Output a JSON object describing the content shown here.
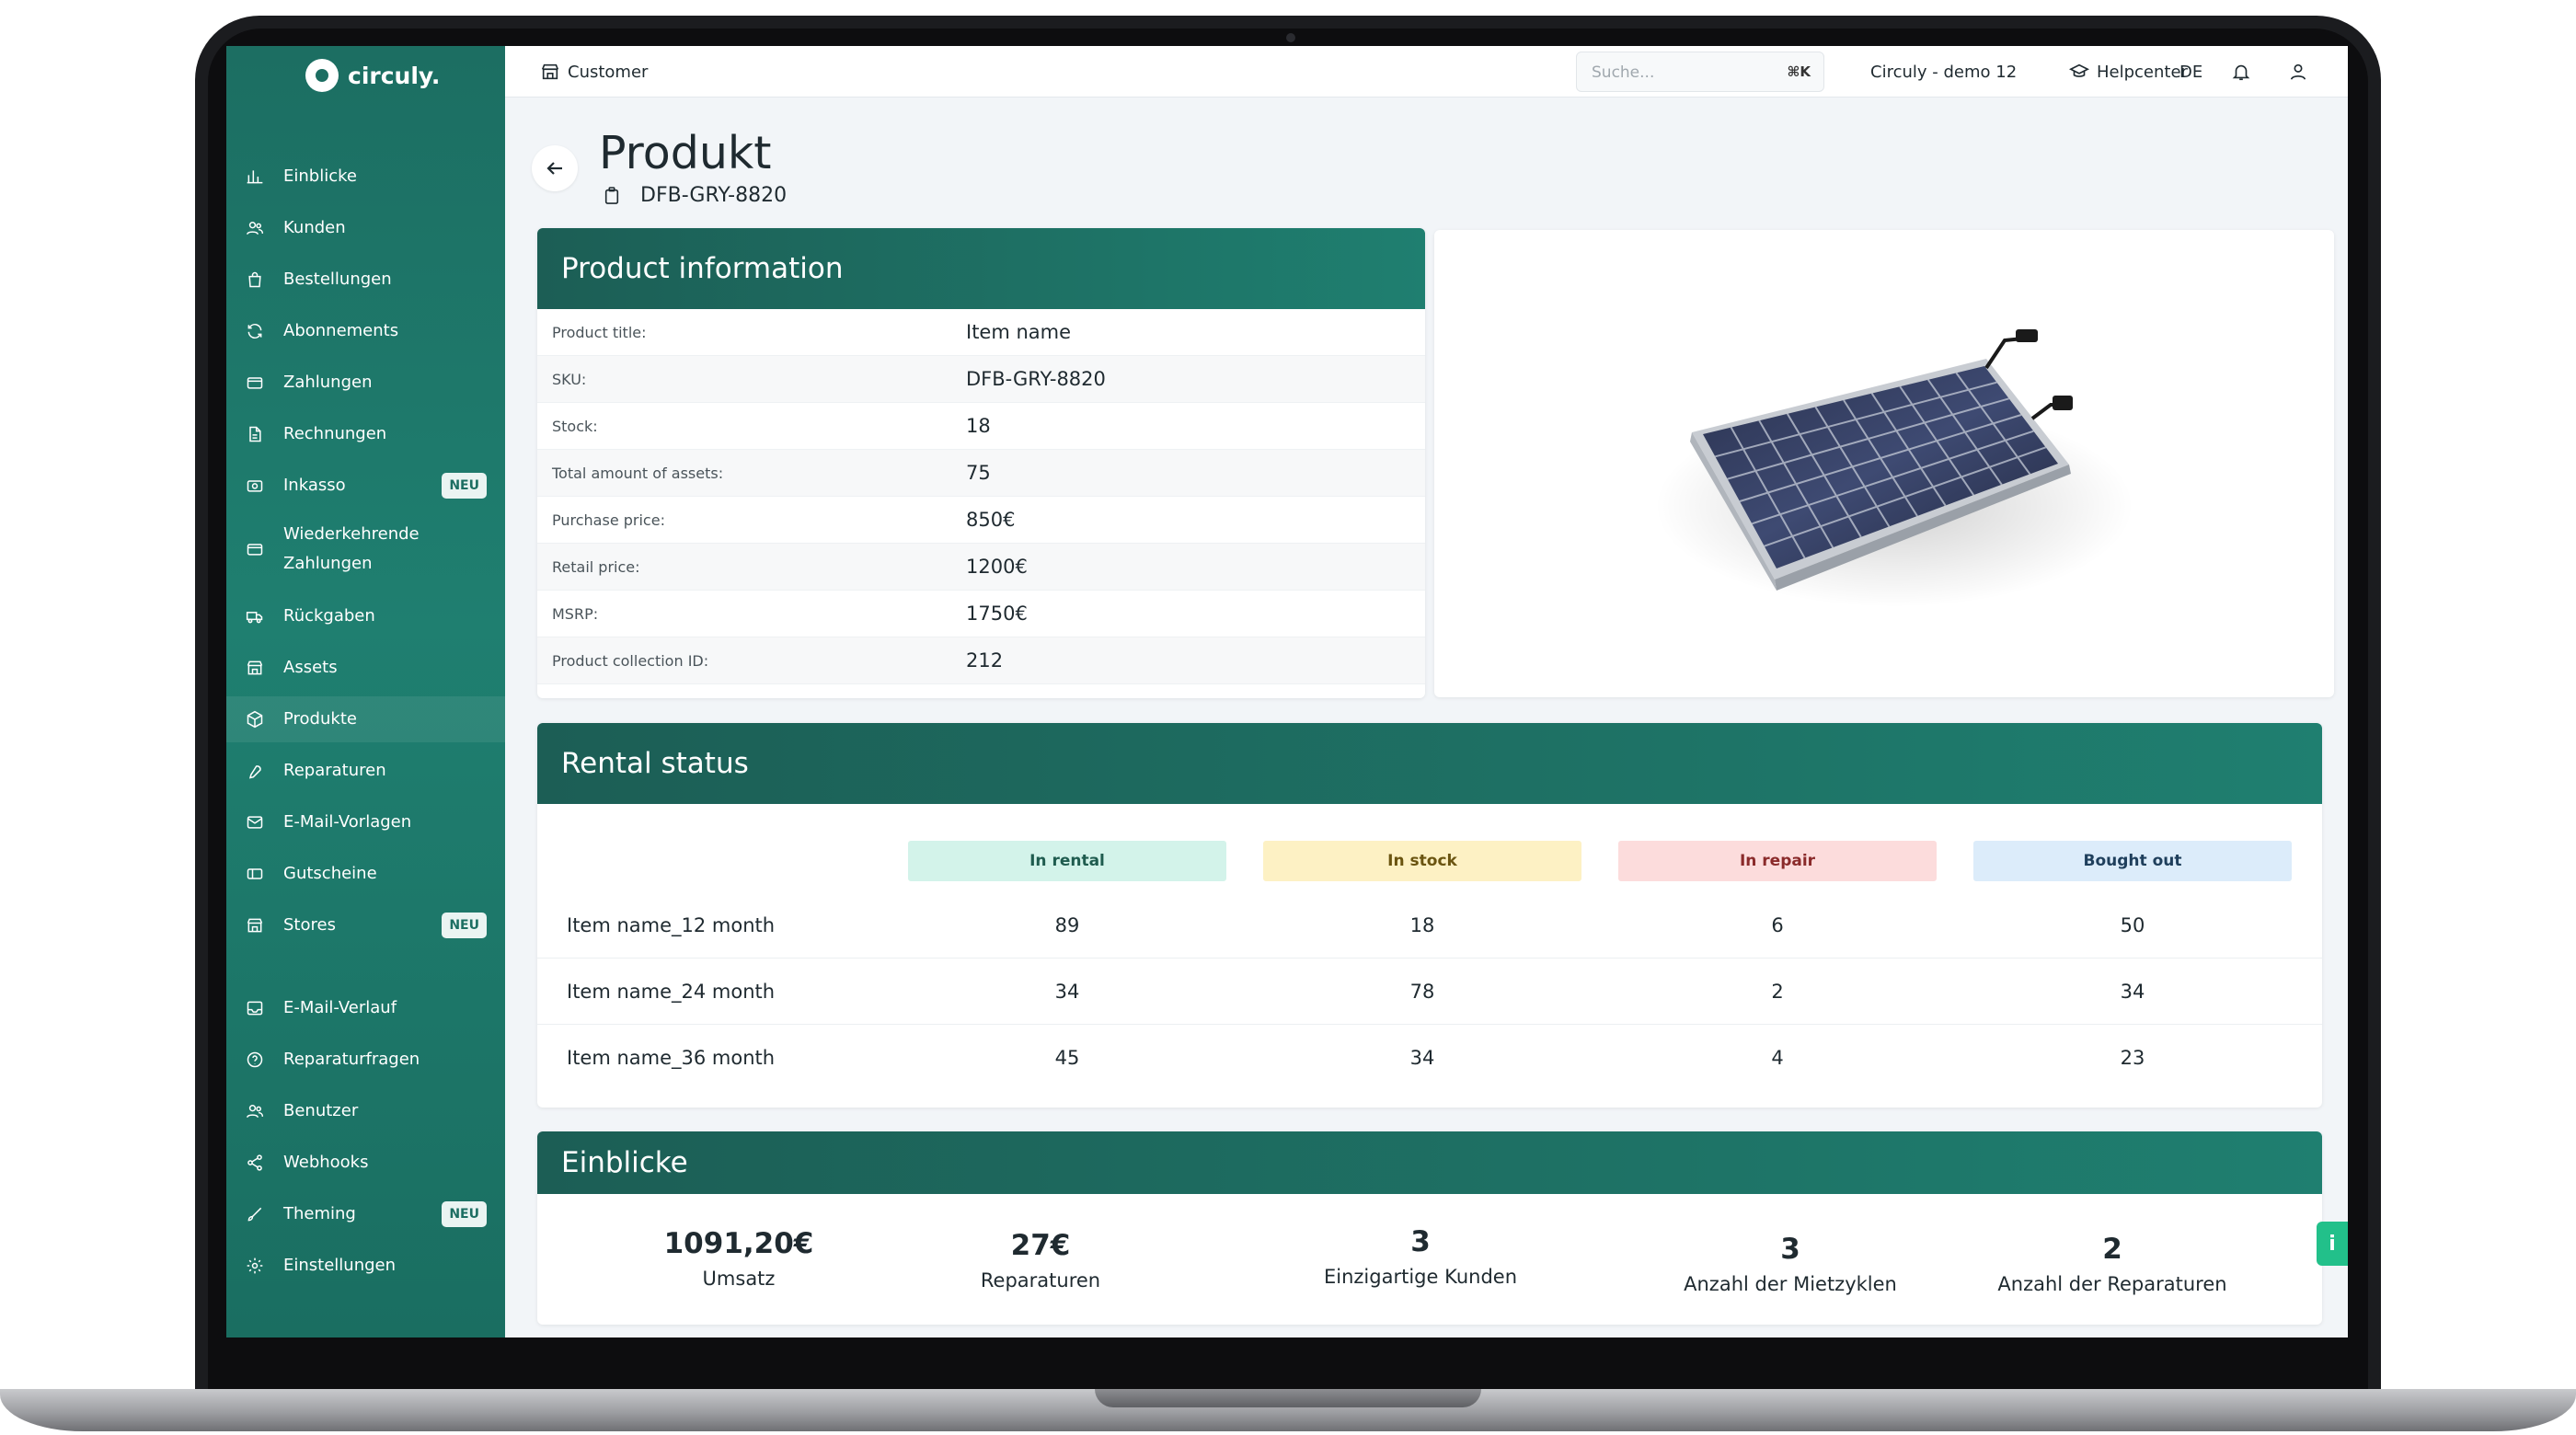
{
  "app": {
    "logo_text": "circuly."
  },
  "sidebar": {
    "items": [
      {
        "label": "Einblicke",
        "icon": "chart-icon"
      },
      {
        "label": "Kunden",
        "icon": "users-icon"
      },
      {
        "label": "Bestellungen",
        "icon": "bag-icon"
      },
      {
        "label": "Abonnements",
        "icon": "refresh-icon"
      },
      {
        "label": "Zahlungen",
        "icon": "card-icon"
      },
      {
        "label": "Rechnungen",
        "icon": "document-icon"
      },
      {
        "label": "Inkasso",
        "icon": "money-icon",
        "badge": "NEU"
      },
      {
        "label": "Wiederkehrende",
        "label2": "Zahlungen",
        "icon": "card-icon"
      },
      {
        "label": "Rückgaben",
        "icon": "truck-icon"
      },
      {
        "label": "Assets",
        "icon": "building-icon"
      },
      {
        "label": "Produkte",
        "icon": "box-icon"
      },
      {
        "label": "Reparaturen",
        "icon": "wrench-icon"
      },
      {
        "label": "E-Mail-Vorlagen",
        "icon": "mail-icon"
      },
      {
        "label": "Gutscheine",
        "icon": "ticket-icon"
      },
      {
        "label": "Stores",
        "icon": "store-icon",
        "badge": "NEU"
      },
      {
        "label": "E-Mail-Verlauf",
        "icon": "inbox-icon"
      },
      {
        "label": "Reparaturfragen",
        "icon": "question-icon"
      },
      {
        "label": "Benutzer",
        "icon": "users-icon"
      },
      {
        "label": "Webhooks",
        "icon": "share-icon"
      },
      {
        "label": "Theming",
        "icon": "brush-icon",
        "badge": "NEU"
      },
      {
        "label": "Einstellungen",
        "icon": "gear-icon"
      }
    ]
  },
  "topbar": {
    "customer_label": "Customer",
    "search_placeholder": "Suche...",
    "search_shortcut": "⌘K",
    "account": "Circuly - demo 12",
    "helpcenter": "Helpcenter",
    "language": "DE"
  },
  "page": {
    "title": "Produkt",
    "sku": "DFB-GRY-8820"
  },
  "product_info": {
    "title": "Product information",
    "rows": [
      {
        "label": "Product title:",
        "value": "Item name"
      },
      {
        "label": "SKU:",
        "value": "DFB-GRY-8820"
      },
      {
        "label": "Stock:",
        "value": "18"
      },
      {
        "label": "Total amount of assets:",
        "value": "75"
      },
      {
        "label": "Purchase price:",
        "value": "850€"
      },
      {
        "label": "Retail price:",
        "value": "1200€"
      },
      {
        "label": "MSRP:",
        "value": "1750€"
      },
      {
        "label": "Product collection ID:",
        "value": "212"
      }
    ]
  },
  "rental_status": {
    "title": "Rental status",
    "columns": [
      {
        "label": "In rental",
        "bg": "#d3f3ea",
        "fg": "#1f5c4f"
      },
      {
        "label": "In stock",
        "bg": "#fdf1c4",
        "fg": "#6a5410"
      },
      {
        "label": "In repair",
        "bg": "#fcdcdc",
        "fg": "#8a2a2a"
      },
      {
        "label": "Bought out",
        "bg": "#dcecfa",
        "fg": "#1f3f5c"
      }
    ],
    "rows": [
      {
        "name": "Item name_12 month",
        "values": [
          "89",
          "18",
          "6",
          "50"
        ]
      },
      {
        "name": "Item name_24 month",
        "values": [
          "34",
          "78",
          "2",
          "34"
        ]
      },
      {
        "name": "Item name_36 month",
        "values": [
          "45",
          "34",
          "4",
          "23"
        ]
      }
    ]
  },
  "insights": {
    "title": "Einblicke",
    "kpis": [
      {
        "value": "1091,20€",
        "label": "Umsatz"
      },
      {
        "value": "27€",
        "label": "Reparaturen"
      },
      {
        "value": "3",
        "label": "Einzigartige Kunden"
      },
      {
        "value": "3",
        "label": "Anzahl der Mietzyklen"
      },
      {
        "value": "2",
        "label": "Anzahl der Reparaturen"
      }
    ]
  },
  "info_tab": "i",
  "colors": {
    "brand": "#1c6e62",
    "accent": "#22c08a"
  }
}
